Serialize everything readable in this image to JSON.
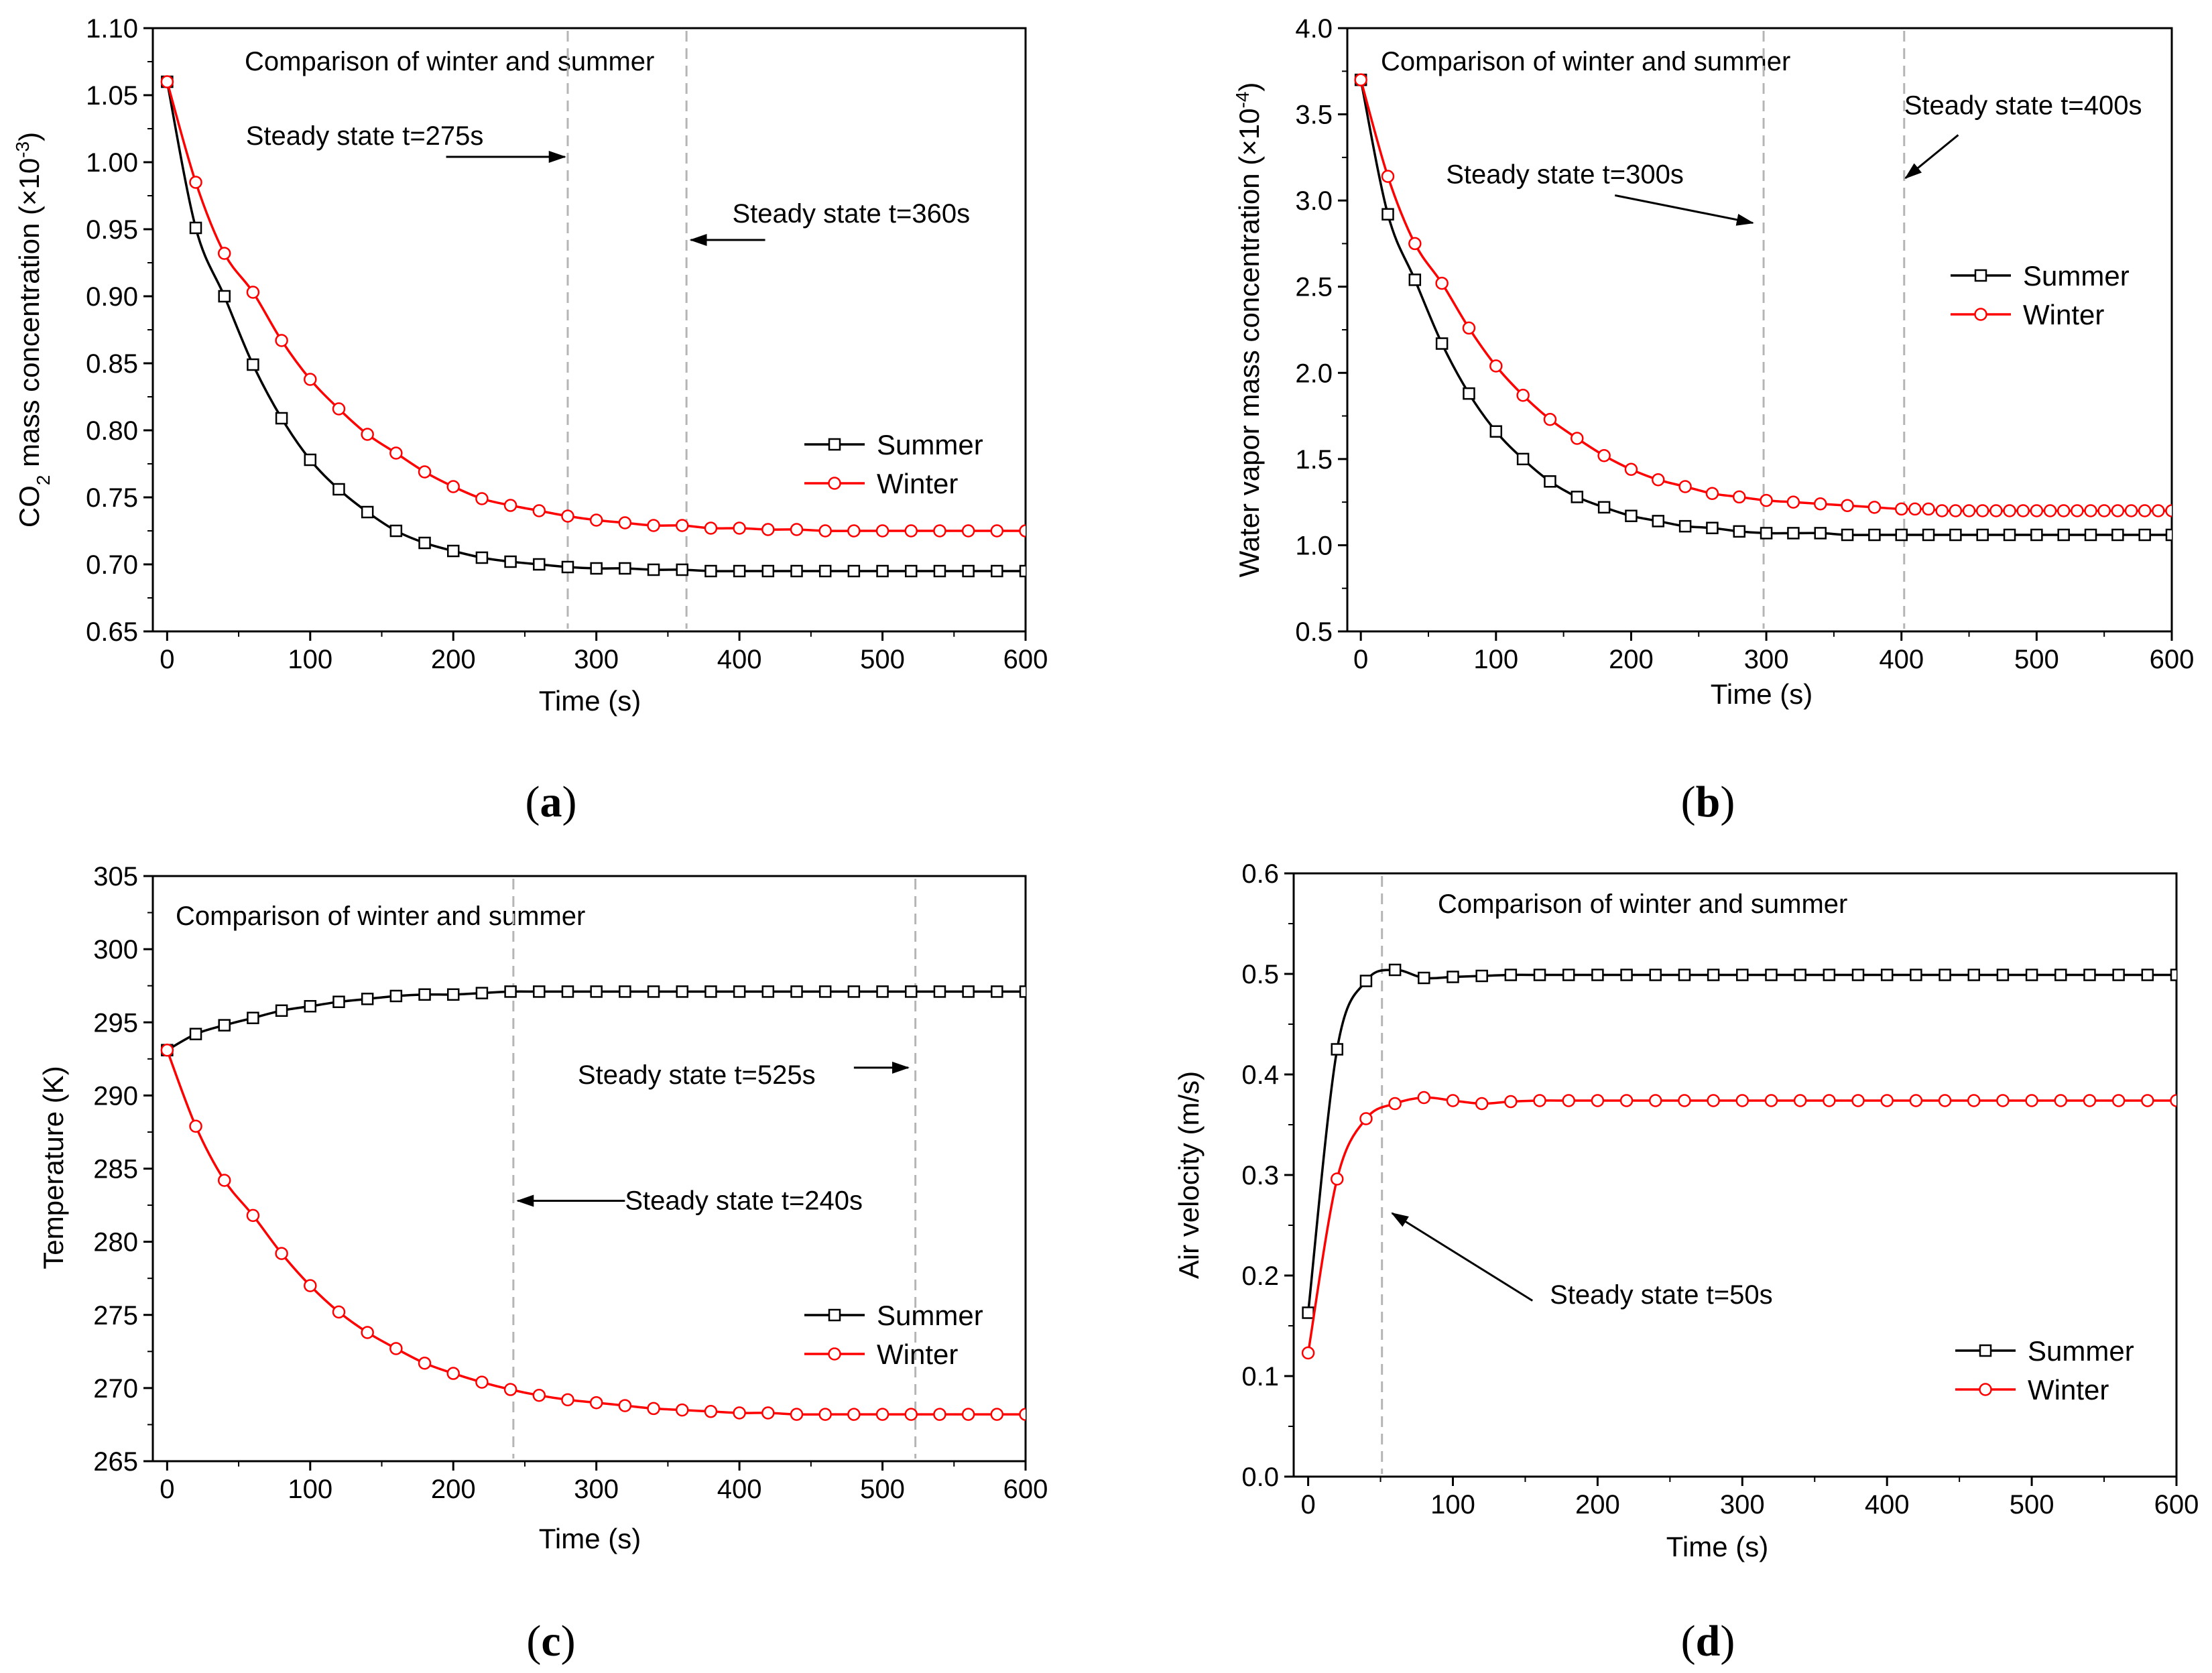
{
  "figure": {
    "panels": [
      "a",
      "b",
      "c",
      "d"
    ]
  },
  "colors": {
    "summer": "#000000",
    "winter": "#ff0000",
    "steady_line": "#b5b5b5"
  },
  "chart_data": [
    {
      "id": "a",
      "panel_label_text": "(a)",
      "type": "line",
      "title": "Comparison of winter and summer",
      "xlabel": "Time (s)",
      "ylabel_main": "CO",
      "ylabel_sub": "2",
      "ylabel_rest": " mass concentration (×10",
      "ylabel_sup": "-3",
      "ylabel_end": ")",
      "xlim": [
        -10,
        600
      ],
      "ylim": [
        0.65,
        1.1
      ],
      "xticks": [
        0,
        100,
        200,
        300,
        400,
        500,
        600
      ],
      "xtick_labels": [
        "0",
        "100",
        "200",
        "300",
        "400",
        "500",
        "600"
      ],
      "yticks": [
        0.65,
        0.7,
        0.75,
        0.8,
        0.85,
        0.9,
        0.95,
        1.0,
        1.05,
        1.1
      ],
      "ytick_labels": [
        "0.65",
        "0.70",
        "0.75",
        "0.80",
        "0.85",
        "0.90",
        "0.95",
        "1.00",
        "1.05",
        "1.10"
      ],
      "steady_lines": [
        280,
        363
      ],
      "annotations": [
        {
          "text": "Steady state t=275s",
          "tx": 55,
          "ty": 1.013,
          "ax1": 195,
          "ay1": 1.004,
          "ax2": 278,
          "ay2": 1.004
        },
        {
          "text": "Steady state t=360s",
          "tx": 395,
          "ty": 0.955,
          "ax1": 418,
          "ay1": 0.942,
          "ax2": 366,
          "ay2": 0.942
        }
      ],
      "legend": [
        "Summer",
        "Winter"
      ],
      "legend_pos": "center-right",
      "series": [
        {
          "name": "Summer",
          "marker": "square",
          "x": [
            0,
            20,
            40,
            60,
            80,
            100,
            120,
            140,
            160,
            180,
            200,
            220,
            240,
            260,
            280,
            300,
            320,
            340,
            360,
            380,
            400,
            420,
            440,
            460,
            480,
            500,
            520,
            540,
            560,
            580,
            600
          ],
          "y": [
            1.06,
            0.951,
            0.9,
            0.849,
            0.809,
            0.778,
            0.756,
            0.739,
            0.725,
            0.716,
            0.71,
            0.705,
            0.702,
            0.7,
            0.698,
            0.697,
            0.697,
            0.696,
            0.696,
            0.695,
            0.695,
            0.695,
            0.695,
            0.695,
            0.695,
            0.695,
            0.695,
            0.695,
            0.695,
            0.695,
            0.695
          ]
        },
        {
          "name": "Winter",
          "marker": "circle",
          "x": [
            0,
            20,
            40,
            60,
            80,
            100,
            120,
            140,
            160,
            180,
            200,
            220,
            240,
            260,
            280,
            300,
            320,
            340,
            360,
            380,
            400,
            420,
            440,
            460,
            480,
            500,
            520,
            540,
            560,
            580,
            600
          ],
          "y": [
            1.06,
            0.985,
            0.932,
            0.903,
            0.867,
            0.838,
            0.816,
            0.797,
            0.783,
            0.769,
            0.758,
            0.749,
            0.744,
            0.74,
            0.736,
            0.733,
            0.731,
            0.729,
            0.729,
            0.727,
            0.727,
            0.726,
            0.726,
            0.725,
            0.725,
            0.725,
            0.725,
            0.725,
            0.725,
            0.725,
            0.725
          ]
        }
      ]
    },
    {
      "id": "b",
      "panel_label_text": "(b)",
      "type": "line",
      "title": "Comparison of winter and summer",
      "xlabel": "Time (s)",
      "ylabel_main": "Water vapor mass concentration (×10",
      "ylabel_sup": "-4",
      "ylabel_end": ")",
      "xlim": [
        -10,
        600
      ],
      "ylim": [
        0.5,
        4.0
      ],
      "xticks": [
        0,
        100,
        200,
        300,
        400,
        500,
        600
      ],
      "xtick_labels": [
        "0",
        "100",
        "200",
        "300",
        "400",
        "500",
        "600"
      ],
      "yticks": [
        0.5,
        1.0,
        1.5,
        2.0,
        2.5,
        3.0,
        3.5,
        4.0
      ],
      "ytick_labels": [
        "0.5",
        "1.0",
        "1.5",
        "2.0",
        "2.5",
        "3.0",
        "3.5",
        "4.0"
      ],
      "steady_lines": [
        298,
        402
      ],
      "annotations": [
        {
          "text": "Steady state t=300s",
          "tx": 63,
          "ty": 3.1,
          "ax1": 188,
          "ay1": 3.03,
          "ax2": 290,
          "ay2": 2.87
        },
        {
          "text": "Steady state t=400s",
          "tx": 402,
          "ty": 3.5,
          "ax1": 442,
          "ay1": 3.38,
          "ax2": 403,
          "ay2": 3.13
        }
      ],
      "legend": [
        "Summer",
        "Winter"
      ],
      "legend_pos": "center-right",
      "series": [
        {
          "name": "Summer",
          "marker": "square",
          "x": [
            0,
            20,
            40,
            60,
            80,
            100,
            120,
            140,
            160,
            180,
            200,
            220,
            240,
            260,
            280,
            300,
            320,
            340,
            360,
            380,
            400,
            420,
            440,
            460,
            480,
            500,
            520,
            540,
            560,
            580,
            600
          ],
          "y": [
            3.7,
            2.92,
            2.54,
            2.17,
            1.88,
            1.66,
            1.5,
            1.37,
            1.28,
            1.22,
            1.17,
            1.14,
            1.11,
            1.1,
            1.08,
            1.07,
            1.07,
            1.07,
            1.06,
            1.06,
            1.06,
            1.06,
            1.06,
            1.06,
            1.06,
            1.06,
            1.06,
            1.06,
            1.06,
            1.06,
            1.06
          ]
        },
        {
          "name": "Winter",
          "marker": "circle",
          "x": [
            0,
            20,
            40,
            60,
            80,
            100,
            120,
            140,
            160,
            180,
            200,
            220,
            240,
            260,
            280,
            300,
            320,
            340,
            360,
            380,
            400,
            410,
            420,
            430,
            440,
            450,
            460,
            470,
            480,
            490,
            500,
            510,
            520,
            530,
            540,
            550,
            560,
            570,
            580,
            590,
            600
          ],
          "y": [
            3.7,
            3.14,
            2.75,
            2.52,
            2.26,
            2.04,
            1.87,
            1.73,
            1.62,
            1.52,
            1.44,
            1.38,
            1.34,
            1.3,
            1.28,
            1.26,
            1.25,
            1.24,
            1.23,
            1.22,
            1.21,
            1.21,
            1.21,
            1.2,
            1.2,
            1.2,
            1.2,
            1.2,
            1.2,
            1.2,
            1.2,
            1.2,
            1.2,
            1.2,
            1.2,
            1.2,
            1.2,
            1.2,
            1.2,
            1.2,
            1.2
          ]
        }
      ]
    },
    {
      "id": "c",
      "panel_label_text": "(c)",
      "type": "line",
      "title": "Comparison of winter and summer",
      "xlabel": "Time (s)",
      "ylabel_main": "Temperature (K)",
      "xlim": [
        -10,
        600
      ],
      "ylim": [
        265,
        305
      ],
      "xticks": [
        0,
        100,
        200,
        300,
        400,
        500,
        600
      ],
      "xtick_labels": [
        "0",
        "100",
        "200",
        "300",
        "400",
        "500",
        "600"
      ],
      "yticks": [
        265,
        270,
        275,
        280,
        285,
        290,
        295,
        300,
        305
      ],
      "ytick_labels": [
        "265",
        "270",
        "275",
        "280",
        "285",
        "290",
        "295",
        "300",
        "305"
      ],
      "steady_lines": [
        242,
        523
      ],
      "annotations": [
        {
          "text": "Steady state t=525s",
          "tx": 287,
          "ty": 290.8,
          "ax1": 480,
          "ay1": 291.9,
          "ax2": 518,
          "ay2": 291.9
        },
        {
          "text": "Steady state t=240s",
          "tx": 320,
          "ty": 282.2,
          "ax1": 320,
          "ay1": 282.8,
          "ax2": 245,
          "ay2": 282.8
        }
      ],
      "legend": [
        "Summer",
        "Winter"
      ],
      "legend_pos": "bottom-right",
      "series": [
        {
          "name": "Summer",
          "marker": "square",
          "x": [
            0,
            20,
            40,
            60,
            80,
            100,
            120,
            140,
            160,
            180,
            200,
            220,
            240,
            260,
            280,
            300,
            320,
            340,
            360,
            380,
            400,
            420,
            440,
            460,
            480,
            500,
            520,
            540,
            560,
            580,
            600
          ],
          "y": [
            293.1,
            294.2,
            294.8,
            295.3,
            295.8,
            296.1,
            296.4,
            296.6,
            296.8,
            296.9,
            296.9,
            297.0,
            297.1,
            297.1,
            297.1,
            297.1,
            297.1,
            297.1,
            297.1,
            297.1,
            297.1,
            297.1,
            297.1,
            297.1,
            297.1,
            297.1,
            297.1,
            297.1,
            297.1,
            297.1,
            297.1
          ]
        },
        {
          "name": "Winter",
          "marker": "circle",
          "x": [
            0,
            20,
            40,
            60,
            80,
            100,
            120,
            140,
            160,
            180,
            200,
            220,
            240,
            260,
            280,
            300,
            320,
            340,
            360,
            380,
            400,
            420,
            440,
            460,
            480,
            500,
            520,
            540,
            560,
            580,
            600
          ],
          "y": [
            293.1,
            287.9,
            284.2,
            281.8,
            279.2,
            277.0,
            275.2,
            273.8,
            272.7,
            271.7,
            271.0,
            270.4,
            269.9,
            269.5,
            269.2,
            269.0,
            268.8,
            268.6,
            268.5,
            268.4,
            268.3,
            268.3,
            268.2,
            268.2,
            268.2,
            268.2,
            268.2,
            268.2,
            268.2,
            268.2,
            268.2
          ]
        }
      ]
    },
    {
      "id": "d",
      "panel_label_text": "(d)",
      "type": "line",
      "title": "Comparison of winter and summer",
      "xlabel": "Time (s)",
      "ylabel_main": "Air velocity (m/s)",
      "xlim": [
        -10,
        600
      ],
      "ylim": [
        0.0,
        0.6
      ],
      "xticks": [
        0,
        100,
        200,
        300,
        400,
        500,
        600
      ],
      "xtick_labels": [
        "0",
        "100",
        "200",
        "300",
        "400",
        "500",
        "600"
      ],
      "yticks": [
        0.0,
        0.1,
        0.2,
        0.3,
        0.4,
        0.5,
        0.6
      ],
      "ytick_labels": [
        "0.0",
        "0.1",
        "0.2",
        "0.3",
        "0.4",
        "0.5",
        "0.6"
      ],
      "steady_lines": [
        51
      ],
      "annotations": [
        {
          "text": "Steady state t=50s",
          "tx": 167,
          "ty": 0.172,
          "ax1": 155,
          "ay1": 0.175,
          "ax2": 58,
          "ay2": 0.262
        }
      ],
      "legend": [
        "Summer",
        "Winter"
      ],
      "legend_pos": "bottom-right",
      "series": [
        {
          "name": "Summer",
          "marker": "square",
          "x": [
            0,
            20,
            40,
            60,
            80,
            100,
            120,
            140,
            160,
            180,
            200,
            220,
            240,
            260,
            280,
            300,
            320,
            340,
            360,
            380,
            400,
            420,
            440,
            460,
            480,
            500,
            520,
            540,
            560,
            580,
            600
          ],
          "y": [
            0.163,
            0.425,
            0.493,
            0.504,
            0.496,
            0.497,
            0.498,
            0.499,
            0.499,
            0.499,
            0.499,
            0.499,
            0.499,
            0.499,
            0.499,
            0.499,
            0.499,
            0.499,
            0.499,
            0.499,
            0.499,
            0.499,
            0.499,
            0.499,
            0.499,
            0.499,
            0.499,
            0.499,
            0.499,
            0.499,
            0.499
          ]
        },
        {
          "name": "Winter",
          "marker": "circle",
          "x": [
            0,
            20,
            40,
            60,
            80,
            100,
            120,
            140,
            160,
            180,
            200,
            220,
            240,
            260,
            280,
            300,
            320,
            340,
            360,
            380,
            400,
            420,
            440,
            460,
            480,
            500,
            520,
            540,
            560,
            580,
            600
          ],
          "y": [
            0.123,
            0.296,
            0.356,
            0.371,
            0.377,
            0.374,
            0.371,
            0.373,
            0.374,
            0.374,
            0.374,
            0.374,
            0.374,
            0.374,
            0.374,
            0.374,
            0.374,
            0.374,
            0.374,
            0.374,
            0.374,
            0.374,
            0.374,
            0.374,
            0.374,
            0.374,
            0.374,
            0.374,
            0.374,
            0.374,
            0.374
          ]
        }
      ]
    }
  ]
}
